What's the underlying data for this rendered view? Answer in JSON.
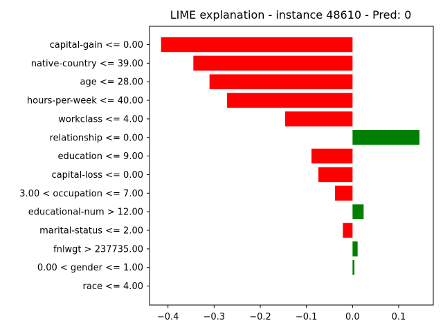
{
  "chart_data": {
    "type": "bar",
    "orientation": "horizontal",
    "title": "LIME explanation - instance 48610 - Pred: 0",
    "xlabel": "",
    "ylabel": "",
    "xlim": [
      -0.44,
      0.175
    ],
    "grid": false,
    "legend": "none",
    "xticks": [
      -0.4,
      -0.3,
      -0.2,
      -0.1,
      0.0,
      0.1
    ],
    "xtick_labels": [
      "−0.4",
      "−0.3",
      "−0.2",
      "−0.1",
      "0.0",
      "0.1"
    ],
    "categories": [
      "capital-gain <= 0.00",
      "native-country <= 39.00",
      "age <= 28.00",
      "hours-per-week <= 40.00",
      "workclass <= 4.00",
      "relationship <= 0.00",
      "education <= 9.00",
      "capital-loss <= 0.00",
      "3.00 < occupation <= 7.00",
      "educational-num > 12.00",
      "marital-status <= 2.00",
      "fnlwgt > 237735.00",
      "0.00 < gender <= 1.00",
      "race <= 4.00"
    ],
    "values": [
      -0.415,
      -0.345,
      -0.31,
      -0.272,
      -0.146,
      0.145,
      -0.089,
      -0.074,
      -0.038,
      0.024,
      -0.021,
      0.011,
      0.004,
      0.0
    ],
    "colors": {
      "positive": "#008000",
      "negative": "#ff0000"
    }
  }
}
